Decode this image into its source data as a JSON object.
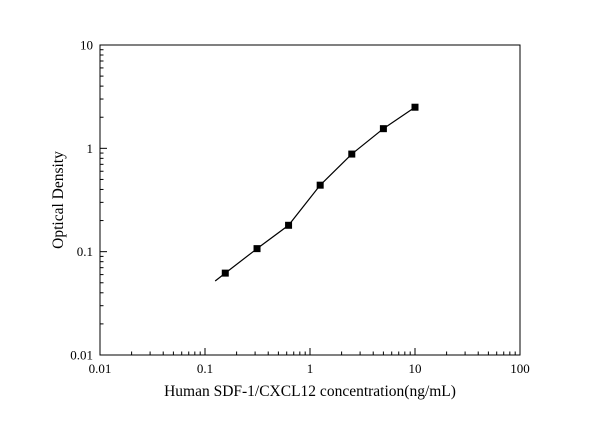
{
  "chart_data": {
    "type": "scatter",
    "title": "",
    "xlabel": "Human SDF-1/CXCL12 concentration(ng/mL)",
    "ylabel": "Optical Density",
    "x_scale": "log",
    "y_scale": "log",
    "xlim": [
      0.01,
      100
    ],
    "ylim": [
      0.01,
      10
    ],
    "x_ticks": [
      0.01,
      0.1,
      1,
      10,
      100
    ],
    "x_tick_labels": [
      "0.01",
      "0.1",
      "1",
      "10",
      "100"
    ],
    "y_ticks": [
      0.01,
      0.1,
      1,
      10
    ],
    "y_tick_labels": [
      "0.01",
      "0.1",
      "1",
      "10"
    ],
    "grid": false,
    "legend": "none",
    "marker_color": "#000000",
    "line_color": "#000000",
    "series": [
      {
        "name": "fitted-line",
        "type": "line",
        "color": "#000000",
        "x": [
          0.125,
          0.156,
          0.313,
          0.625,
          1.25,
          2.5,
          5,
          10
        ],
        "y": [
          0.052,
          0.062,
          0.107,
          0.18,
          0.44,
          0.88,
          1.55,
          2.5
        ]
      },
      {
        "name": "standard-points",
        "type": "scatter",
        "marker": "square",
        "color": "#000000",
        "x": [
          0.156,
          0.313,
          0.625,
          1.25,
          2.5,
          5,
          10
        ],
        "y": [
          0.062,
          0.107,
          0.18,
          0.44,
          0.88,
          1.55,
          2.5
        ]
      }
    ]
  }
}
